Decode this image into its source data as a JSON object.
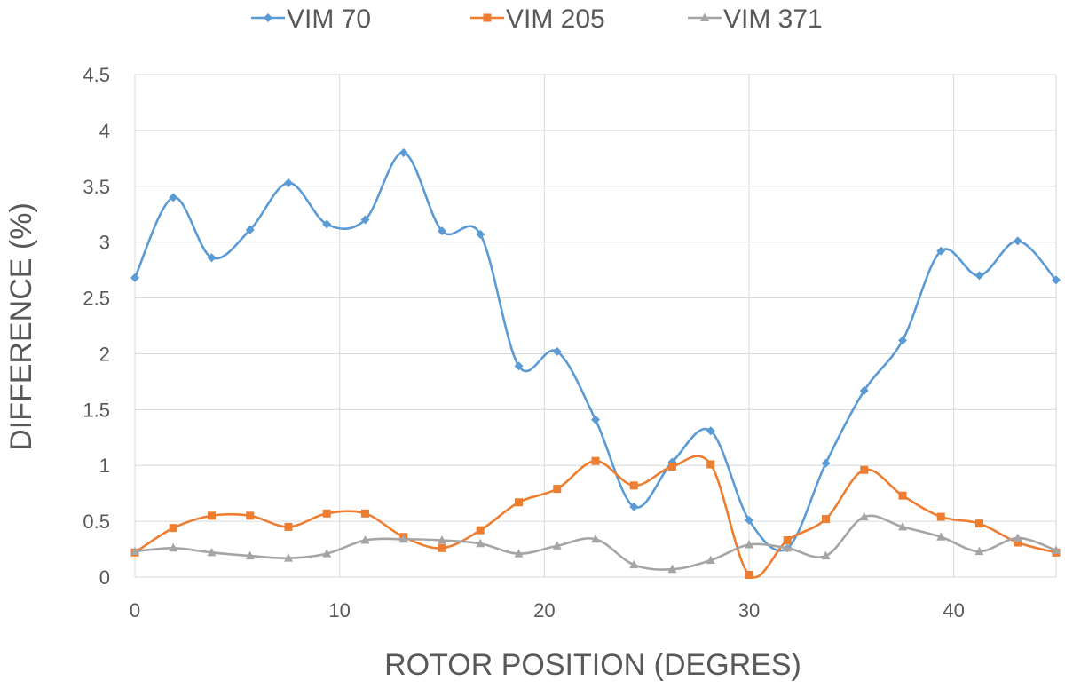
{
  "chart_data": {
    "type": "line",
    "title": "",
    "xlabel": "ROTOR POSITION (DEGRES)",
    "ylabel": "DIFFERENCE (%)",
    "xlim": [
      0,
      45
    ],
    "ylim": [
      0,
      4.5
    ],
    "x_ticks": [
      "0",
      "10",
      "20",
      "30",
      "40"
    ],
    "y_ticks": [
      "0",
      "0.5",
      "1",
      "1.5",
      "2",
      "2.5",
      "3",
      "3.5",
      "4",
      "4.5"
    ],
    "grid": true,
    "smooth": true,
    "legend_position": "top",
    "x": [
      0,
      1.875,
      3.75,
      5.625,
      7.5,
      9.375,
      11.25,
      13.125,
      15,
      16.875,
      18.75,
      20.625,
      22.5,
      24.375,
      26.25,
      28.125,
      30,
      31.875,
      33.75,
      35.625,
      37.5,
      39.375,
      41.25,
      43.125,
      45
    ],
    "series": [
      {
        "name": "VIM 70",
        "color": "#5b9bd5",
        "marker": "diamond",
        "values": [
          2.68,
          3.4,
          2.86,
          3.11,
          3.53,
          3.16,
          3.2,
          3.8,
          3.1,
          3.07,
          1.89,
          2.02,
          1.41,
          0.63,
          1.03,
          1.31,
          0.51,
          0.26,
          1.02,
          1.67,
          2.12,
          2.92,
          2.7,
          3.01,
          2.66
        ]
      },
      {
        "name": "VIM 205",
        "color": "#ed7d31",
        "marker": "square",
        "values": [
          0.22,
          0.44,
          0.55,
          0.55,
          0.45,
          0.57,
          0.57,
          0.36,
          0.26,
          0.42,
          0.67,
          0.79,
          1.04,
          0.82,
          0.99,
          1.01,
          0.02,
          0.33,
          0.52,
          0.96,
          0.73,
          0.54,
          0.48,
          0.31,
          0.22
        ]
      },
      {
        "name": "VIM 371",
        "color": "#a5a5a5",
        "marker": "triangle",
        "values": [
          0.23,
          0.26,
          0.22,
          0.19,
          0.17,
          0.21,
          0.33,
          0.34,
          0.33,
          0.3,
          0.21,
          0.28,
          0.34,
          0.11,
          0.07,
          0.15,
          0.29,
          0.26,
          0.19,
          0.54,
          0.45,
          0.36,
          0.23,
          0.35,
          0.24
        ]
      }
    ]
  }
}
